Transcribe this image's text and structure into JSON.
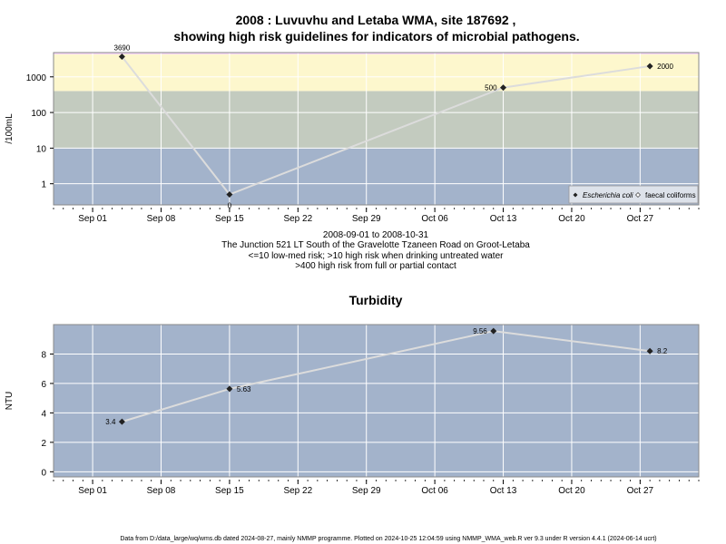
{
  "figure": {
    "title_line1": "2008 : Luvuvhu and Letaba WMA, site 187692 ,",
    "title_line2": "showing high risk guidelines for indicators of microbial pathogens.",
    "date_range": "2008-09-01 to 2008-10-31",
    "location": "The Junction 521 LT South of the Gravelotte Tzaneen Road on Groot-Letaba",
    "guideline_1": "<=10 low-med risk; >10 high risk when drinking untreated water",
    "guideline_2": ">400 high risk from full or partial contact",
    "footer": "Data from D:/data_large/wq/wms.db dated 2024-08-27, mainly NMMP programme. Plotted on 2024-10-25 12:04:59 using NMMP_WMA_web.R ver 9.3 under R version 4.4.1 (2024-06-14 ucrt)"
  },
  "colors": {
    "band_low": "#a3b3cb",
    "band_med": "#c3cbbf",
    "band_high": "#fdf7cd",
    "band_top": "#f7d8f7",
    "series_line": "#dcdcdc",
    "point": "#222222",
    "grid": "#ffffff",
    "panel_bg": "#a3b3cb",
    "legend_bg": "#dde2ea"
  },
  "chart_data": [
    {
      "type": "line",
      "title": "",
      "ylabel": "/100mL",
      "yscale": "log",
      "yticks": [
        1,
        10,
        100,
        1000
      ],
      "ytick_labels": [
        "1",
        "10",
        "100",
        "1000"
      ],
      "xlim": [
        "2008-08-28",
        "2008-11-02"
      ],
      "xticks": [
        "2008-09-01",
        "2008-09-08",
        "2008-09-15",
        "2008-09-22",
        "2008-09-29",
        "2008-10-06",
        "2008-10-13",
        "2008-10-20",
        "2008-10-27"
      ],
      "xtick_labels": [
        "Sep 01",
        "Sep 08",
        "Sep 15",
        "Sep 22",
        "Sep 29",
        "Oct 06",
        "Oct 13",
        "Oct 20",
        "Oct 27"
      ],
      "risk_bands": [
        {
          "from": 0.1,
          "to": 10,
          "label": "low-med risk"
        },
        {
          "from": 10,
          "to": 400,
          "label": "high risk untreated drinking"
        },
        {
          "from": 400,
          "to": 4800,
          "label": "high risk contact"
        }
      ],
      "series": [
        {
          "name": "Escherichia coli",
          "x": [
            "2008-09-04",
            "2008-09-15",
            "2008-10-13",
            "2008-10-28"
          ],
          "y": [
            3690,
            0.5,
            500,
            2000
          ],
          "labels": [
            "3690",
            "0",
            "500",
            "2000"
          ]
        }
      ],
      "legend": {
        "position": "bottom-right",
        "entries": [
          "Escherichia coli",
          "faecal coliforms"
        ]
      }
    },
    {
      "type": "line",
      "title": "Turbidity",
      "ylabel": "NTU",
      "ylim": [
        -0.35,
        10
      ],
      "yticks": [
        0,
        2,
        4,
        6,
        8
      ],
      "xlim": [
        "2008-08-28",
        "2008-11-02"
      ],
      "xticks": [
        "2008-09-01",
        "2008-09-08",
        "2008-09-15",
        "2008-09-22",
        "2008-09-29",
        "2008-10-06",
        "2008-10-13",
        "2008-10-20",
        "2008-10-27"
      ],
      "xtick_labels": [
        "Sep 01",
        "Sep 08",
        "Sep 15",
        "Sep 22",
        "Sep 29",
        "Oct 06",
        "Oct 13",
        "Oct 20",
        "Oct 27"
      ],
      "series": [
        {
          "name": "",
          "x": [
            "2008-09-04",
            "2008-09-15",
            "2008-10-12",
            "2008-10-28"
          ],
          "y": [
            3.4,
            5.63,
            9.56,
            8.2
          ],
          "labels": [
            "3.4",
            "5.63",
            "9.56",
            "8.2"
          ]
        }
      ]
    }
  ]
}
